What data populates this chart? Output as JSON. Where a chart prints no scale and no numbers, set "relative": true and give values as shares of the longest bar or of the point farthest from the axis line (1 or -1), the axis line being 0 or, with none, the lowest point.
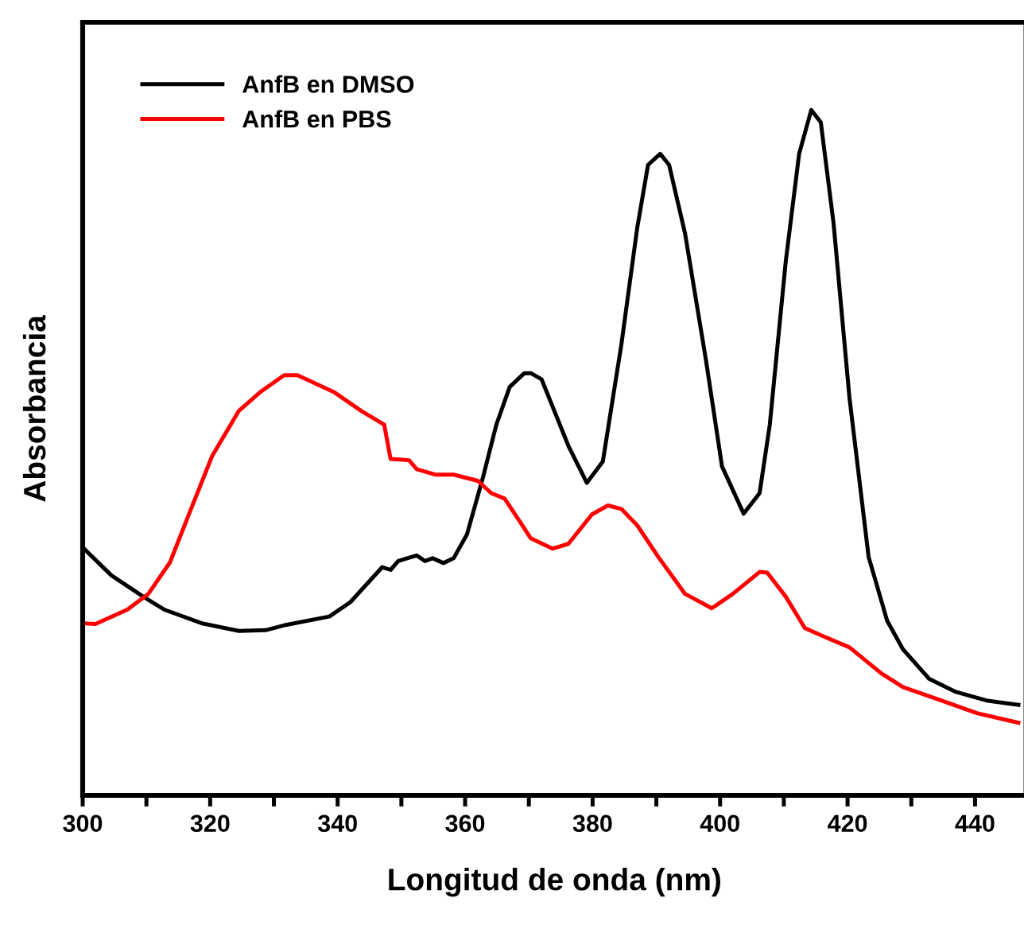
{
  "chart_data": {
    "type": "line",
    "xlabel": "Longitud de onda (nm)",
    "ylabel": "Absorbancia",
    "relative": true,
    "xlim": [
      300,
      448
    ],
    "xticks": [
      300,
      {
        "value": 310,
        "label": null
      },
      320,
      {
        "value": 330,
        "label": null
      },
      340,
      {
        "value": 350,
        "label": null
      },
      360,
      {
        "value": 370,
        "label": null
      },
      380,
      {
        "value": 390,
        "label": null
      },
      400,
      {
        "value": 410,
        "label": null
      },
      420,
      {
        "value": 430,
        "label": null
      },
      440
    ],
    "legend": "top left",
    "grid": false,
    "marker": "none",
    "line_style": "solid",
    "series": [
      {
        "name": "AnfB en DMSO",
        "color": "#000000",
        "x": [
          300.2,
          304.5,
          309.5,
          312.8,
          318.7,
          324.5,
          328.7,
          332,
          338.7,
          342,
          347,
          348.3,
          349.5,
          352.4,
          353.7,
          354.9,
          356.6,
          358.2,
          360.3,
          362.8,
          364.9,
          367,
          369.3,
          370.3,
          372,
          376.2,
          379.1,
          381.6,
          384.5,
          387,
          388.7,
          390.6,
          392,
          394.5,
          397.8,
          400.3,
          403.7,
          406.2,
          407.8,
          410.3,
          412.4,
          414.3,
          415.8,
          417.8,
          420.3,
          423.3,
          426.2,
          428.7,
          432.8,
          437,
          442,
          446.8
        ],
        "values": [
          0.36,
          0.321,
          0.29,
          0.271,
          0.251,
          0.24,
          0.241,
          0.249,
          0.261,
          0.282,
          0.333,
          0.329,
          0.342,
          0.35,
          0.342,
          0.346,
          0.339,
          0.346,
          0.381,
          0.464,
          0.541,
          0.596,
          0.616,
          0.616,
          0.607,
          0.51,
          0.456,
          0.487,
          0.657,
          0.828,
          0.92,
          0.936,
          0.92,
          0.82,
          0.634,
          0.48,
          0.411,
          0.441,
          0.541,
          0.779,
          0.936,
          1.0,
          0.982,
          0.835,
          0.58,
          0.348,
          0.255,
          0.213,
          0.17,
          0.151,
          0.138,
          0.132
        ]
      },
      {
        "name": "AnfB en PBS",
        "color": "#ff0000",
        "x": [
          300.2,
          302,
          307,
          310.3,
          313.7,
          317,
          320.3,
          324.5,
          327.8,
          331.6,
          333.7,
          339.5,
          343.7,
          347.3,
          348.3,
          351.2,
          352.4,
          355.3,
          358.2,
          362,
          364.1,
          366.2,
          368.7,
          370.3,
          373.7,
          376.2,
          379.9,
          382.4,
          384.5,
          387,
          390.3,
          394.5,
          398.7,
          402,
          406.2,
          407.4,
          410.3,
          413.3,
          416.2,
          420.3,
          425.3,
          428.7,
          434.5,
          440.3,
          446.8
        ],
        "values": [
          0.251,
          0.25,
          0.271,
          0.294,
          0.34,
          0.418,
          0.495,
          0.561,
          0.588,
          0.613,
          0.613,
          0.588,
          0.561,
          0.541,
          0.491,
          0.489,
          0.476,
          0.468,
          0.468,
          0.459,
          0.441,
          0.433,
          0.398,
          0.375,
          0.36,
          0.367,
          0.41,
          0.423,
          0.418,
          0.394,
          0.348,
          0.294,
          0.273,
          0.294,
          0.326,
          0.325,
          0.29,
          0.244,
          0.232,
          0.216,
          0.178,
          0.158,
          0.139,
          0.12,
          0.106
        ]
      }
    ]
  }
}
